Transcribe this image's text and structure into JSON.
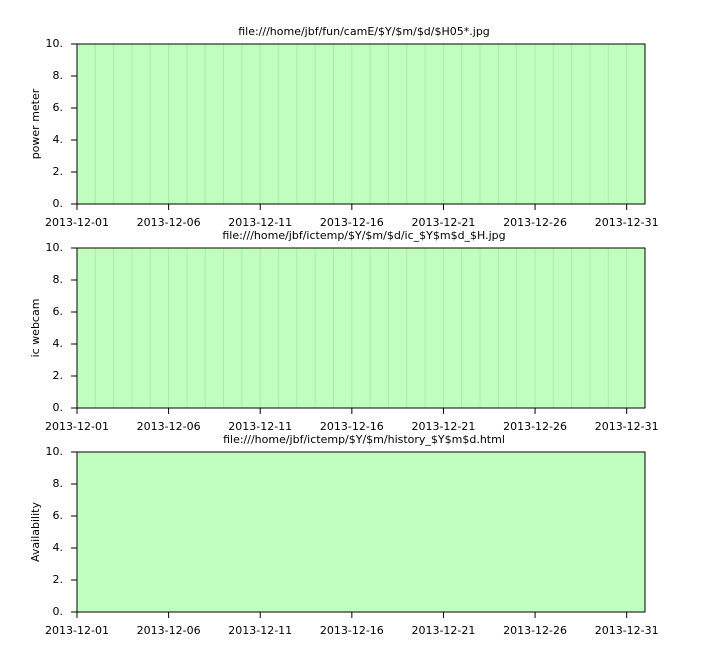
{
  "chart_data": [
    {
      "type": "bar",
      "title": "file:///home/jbf/fun/camE/$Y/$m/$d/$H05*.jpg",
      "ylabel": "power meter",
      "x": [
        0,
        1,
        2,
        3,
        4,
        5,
        6,
        7,
        8,
        9,
        10,
        11,
        12,
        13,
        14,
        15,
        16,
        17,
        18,
        19,
        20,
        21,
        22,
        23,
        24,
        25,
        26,
        27,
        28,
        29,
        30
      ],
      "values": [
        10,
        10,
        10,
        10,
        10,
        10,
        10,
        10,
        10,
        10,
        10,
        10,
        10,
        10,
        10,
        10,
        10,
        10,
        10,
        10,
        10,
        10,
        10,
        10,
        10,
        10,
        10,
        10,
        10,
        10,
        10
      ],
      "color": "#c0ffc0",
      "edgecolor": "#a6f0a6",
      "xlim": [
        0,
        31
      ],
      "xticks": [
        {
          "value": 0,
          "label": "2013-12-01"
        },
        {
          "value": 5,
          "label": "2013-12-06"
        },
        {
          "value": 10,
          "label": "2013-12-11"
        },
        {
          "value": 15,
          "label": "2013-12-16"
        },
        {
          "value": 20,
          "label": "2013-12-21"
        },
        {
          "value": 25,
          "label": "2013-12-26"
        },
        {
          "value": 30,
          "label": "2013-12-31"
        }
      ],
      "ylim": [
        0,
        10
      ],
      "yticks": [
        {
          "value": 0,
          "label": "0."
        },
        {
          "value": 2,
          "label": "2."
        },
        {
          "value": 4,
          "label": "4."
        },
        {
          "value": 6,
          "label": "6."
        },
        {
          "value": 8,
          "label": "8."
        },
        {
          "value": 10,
          "label": "10."
        }
      ]
    },
    {
      "type": "bar",
      "title": "file:///home/jbf/ictemp/$Y/$m/$d/ic_$Y$m$d_$H.jpg",
      "ylabel": "ic webcam",
      "x": [
        0,
        1,
        2,
        3,
        4,
        5,
        6,
        7,
        8,
        9,
        10,
        11,
        12,
        13,
        14,
        15,
        16,
        17,
        18,
        19,
        20,
        21,
        22,
        23,
        24,
        25,
        26,
        27,
        28,
        29,
        30
      ],
      "values": [
        10,
        10,
        10,
        10,
        10,
        10,
        10,
        10,
        10,
        10,
        10,
        10,
        10,
        10,
        10,
        10,
        10,
        10,
        10,
        10,
        10,
        10,
        10,
        10,
        10,
        10,
        10,
        10,
        10,
        10,
        10
      ],
      "color": "#c0ffc0",
      "edgecolor": "#a6f0a6",
      "xlim": [
        0,
        31
      ],
      "xticks": [
        {
          "value": 0,
          "label": "2013-12-01"
        },
        {
          "value": 5,
          "label": "2013-12-06"
        },
        {
          "value": 10,
          "label": "2013-12-11"
        },
        {
          "value": 15,
          "label": "2013-12-16"
        },
        {
          "value": 20,
          "label": "2013-12-21"
        },
        {
          "value": 25,
          "label": "2013-12-26"
        },
        {
          "value": 30,
          "label": "2013-12-31"
        }
      ],
      "ylim": [
        0,
        10
      ],
      "yticks": [
        {
          "value": 0,
          "label": "0."
        },
        {
          "value": 2,
          "label": "2."
        },
        {
          "value": 4,
          "label": "4."
        },
        {
          "value": 6,
          "label": "6."
        },
        {
          "value": 8,
          "label": "8."
        },
        {
          "value": 10,
          "label": "10."
        }
      ]
    },
    {
      "type": "area",
      "title": "file:///home/jbf/ictemp/$Y/$m/history_$Y$m$d.html",
      "ylabel": "Availability",
      "x": [
        0,
        31
      ],
      "values": [
        10,
        10
      ],
      "color": "#c0ffc0",
      "xlim": [
        0,
        31
      ],
      "xticks": [
        {
          "value": 0,
          "label": "2013-12-01"
        },
        {
          "value": 5,
          "label": "2013-12-06"
        },
        {
          "value": 10,
          "label": "2013-12-11"
        },
        {
          "value": 15,
          "label": "2013-12-16"
        },
        {
          "value": 20,
          "label": "2013-12-21"
        },
        {
          "value": 25,
          "label": "2013-12-26"
        },
        {
          "value": 30,
          "label": "2013-12-31"
        }
      ],
      "ylim": [
        0,
        10
      ],
      "yticks": [
        {
          "value": 0,
          "label": "0."
        },
        {
          "value": 2,
          "label": "2."
        },
        {
          "value": 4,
          "label": "4."
        },
        {
          "value": 6,
          "label": "6."
        },
        {
          "value": 8,
          "label": "8."
        },
        {
          "value": 10,
          "label": "10."
        }
      ]
    }
  ]
}
